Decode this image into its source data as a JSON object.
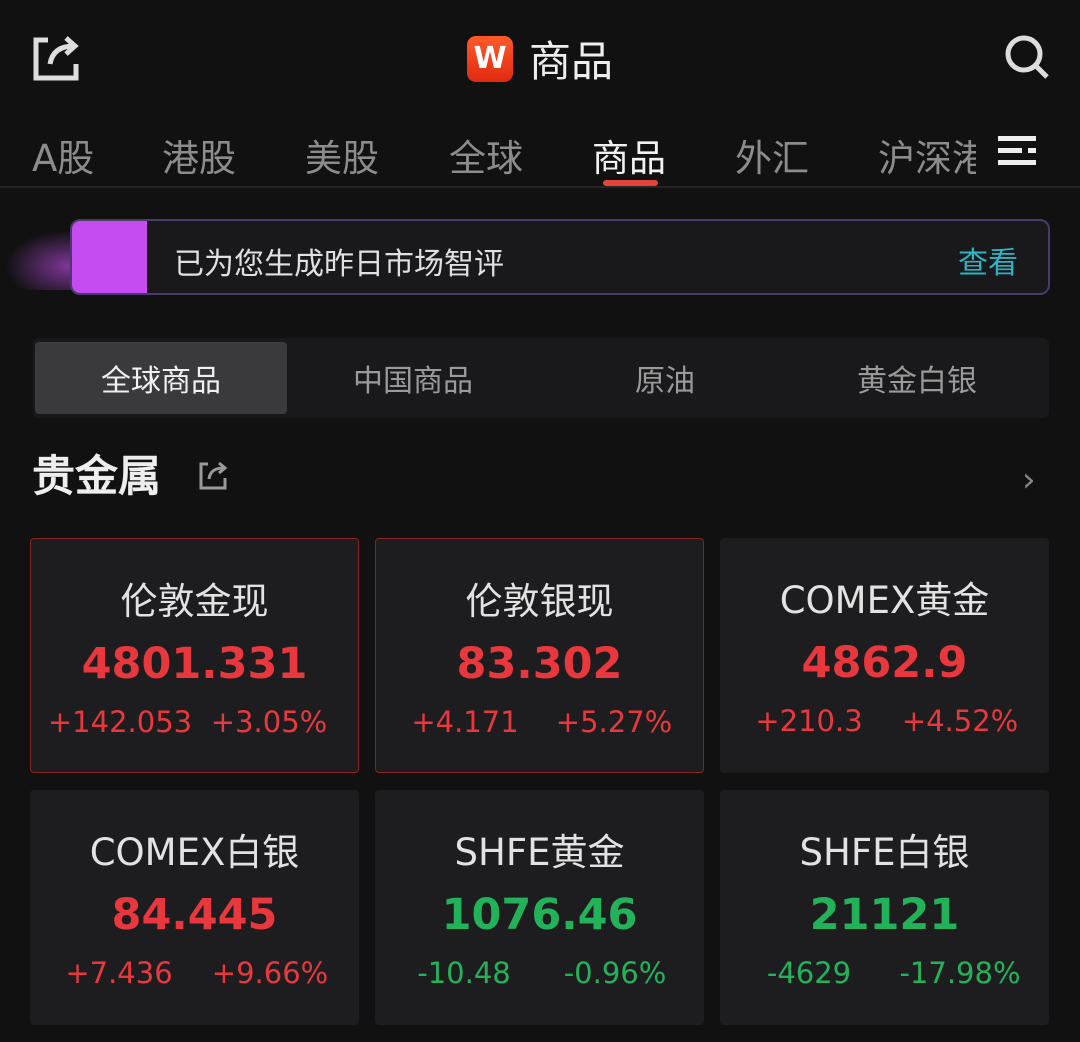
{
  "header": {
    "title": "商品",
    "logo_text": "W",
    "share_icon": "share-icon",
    "search_icon": "search-icon"
  },
  "tabs": [
    {
      "label": "A股"
    },
    {
      "label": "港股"
    },
    {
      "label": "美股"
    },
    {
      "label": "全球"
    },
    {
      "label": "商品",
      "active": true
    },
    {
      "label": "外汇"
    },
    {
      "label": "沪深港"
    }
  ],
  "banner": {
    "text": "已为您生成昨日市场智评",
    "link": "查看"
  },
  "segments": [
    {
      "label": "全球商品",
      "active": true
    },
    {
      "label": "中国商品"
    },
    {
      "label": "原油"
    },
    {
      "label": "黄金白银"
    }
  ],
  "section": {
    "title": "贵金属"
  },
  "colors": {
    "up": "#e8383d",
    "down": "#22b25a",
    "accent": "#e0443a",
    "link": "#2cb3c6",
    "banner": "#c44cf0"
  },
  "cards": [
    {
      "name": "伦敦金现",
      "price": "4801.331",
      "change": "+142.053",
      "pct": "+3.05%",
      "dir": "up"
    },
    {
      "name": "伦敦银现",
      "price": "83.302",
      "change": "+4.171",
      "pct": "+5.27%",
      "dir": "up"
    },
    {
      "name": "COMEX黄金",
      "price": "4862.9",
      "change": "+210.3",
      "pct": "+4.52%",
      "dir": "up"
    },
    {
      "name": "COMEX白银",
      "price": "84.445",
      "change": "+7.436",
      "pct": "+9.66%",
      "dir": "up"
    },
    {
      "name": "SHFE黄金",
      "price": "1076.46",
      "change": "-10.48",
      "pct": "-0.96%",
      "dir": "down"
    },
    {
      "name": "SHFE白银",
      "price": "21121",
      "change": "-4629",
      "pct": "-17.98%",
      "dir": "down"
    }
  ]
}
